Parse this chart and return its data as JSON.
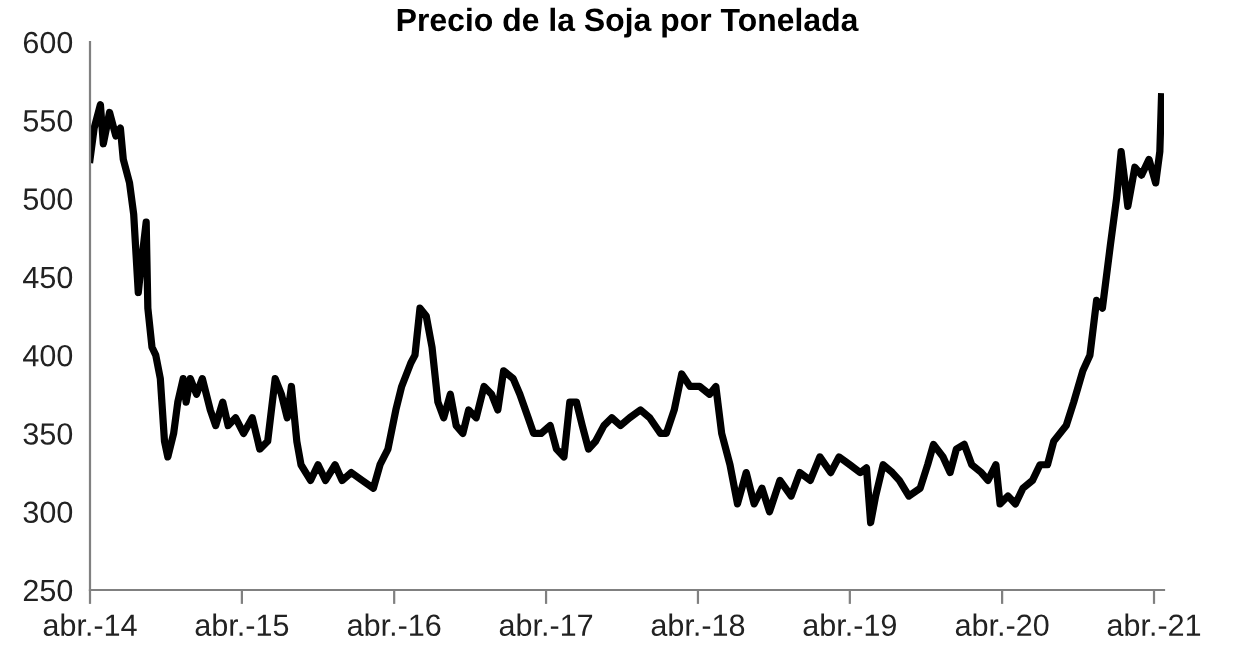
{
  "chart_data": {
    "type": "line",
    "title": "Precio de la Soja por Tonelada",
    "x": [
      "2014-04-01",
      "2014-04-11",
      "2014-04-26",
      "2014-05-03",
      "2014-05-18",
      "2014-06-02",
      "2014-06-13",
      "2014-06-20",
      "2014-07-05",
      "2014-07-15",
      "2014-07-26",
      "2014-08-03",
      "2014-08-14",
      "2014-08-18",
      "2014-08-28",
      "2014-09-06",
      "2014-09-17",
      "2014-09-27",
      "2014-10-05",
      "2014-10-19",
      "2014-10-29",
      "2014-11-11",
      "2014-11-18",
      "2014-11-28",
      "2014-12-13",
      "2014-12-27",
      "2015-01-15",
      "2015-01-28",
      "2015-02-14",
      "2015-02-27",
      "2015-03-17",
      "2015-04-05",
      "2015-04-26",
      "2015-05-14",
      "2015-06-02",
      "2015-06-20",
      "2015-07-05",
      "2015-07-19",
      "2015-07-29",
      "2015-08-11",
      "2015-08-21",
      "2015-09-13",
      "2015-10-01",
      "2015-10-19",
      "2015-11-11",
      "2015-11-28",
      "2015-12-20",
      "2016-01-15",
      "2016-02-11",
      "2016-02-27",
      "2016-03-17",
      "2016-04-05",
      "2016-04-19",
      "2016-05-11",
      "2016-05-21",
      "2016-06-02",
      "2016-06-17",
      "2016-07-01",
      "2016-07-15",
      "2016-07-29",
      "2016-08-14",
      "2016-08-28",
      "2016-09-13",
      "2016-09-27",
      "2016-10-15",
      "2016-11-03",
      "2016-11-21",
      "2016-12-06",
      "2016-12-20",
      "2017-01-12",
      "2017-01-28",
      "2017-02-17",
      "2017-03-02",
      "2017-03-20",
      "2017-04-11",
      "2017-04-26",
      "2017-05-14",
      "2017-05-28",
      "2017-06-13",
      "2017-06-27",
      "2017-07-12",
      "2017-07-29",
      "2017-08-18",
      "2017-09-06",
      "2017-09-27",
      "2017-10-19",
      "2017-11-14",
      "2017-12-06",
      "2018-01-01",
      "2018-01-15",
      "2018-02-03",
      "2018-02-21",
      "2018-03-13",
      "2018-04-05",
      "2018-04-29",
      "2018-05-14",
      "2018-05-28",
      "2018-06-17",
      "2018-07-05",
      "2018-07-26",
      "2018-08-14",
      "2018-09-02",
      "2018-09-20",
      "2018-10-15",
      "2018-11-11",
      "2018-12-02",
      "2018-12-27",
      "2019-01-19",
      "2019-02-14",
      "2019-03-06",
      "2019-04-01",
      "2019-04-26",
      "2019-05-11",
      "2019-05-21",
      "2019-06-02",
      "2019-06-20",
      "2019-07-12",
      "2019-07-29",
      "2019-08-21",
      "2019-09-17",
      "2019-10-05",
      "2019-10-19",
      "2019-11-11",
      "2019-11-28",
      "2019-12-13",
      "2020-01-01",
      "2020-01-19",
      "2020-02-11",
      "2020-02-27",
      "2020-03-17",
      "2020-03-27",
      "2020-04-15",
      "2020-05-03",
      "2020-05-21",
      "2020-06-13",
      "2020-07-01",
      "2020-07-19",
      "2020-08-03",
      "2020-09-02",
      "2020-09-20",
      "2020-10-12",
      "2020-10-29",
      "2020-11-14",
      "2020-11-28",
      "2020-12-17",
      "2021-01-01",
      "2021-01-12",
      "2021-01-19",
      "2021-01-28",
      "2021-02-14",
      "2021-03-02",
      "2021-03-20",
      "2021-04-05",
      "2021-04-15",
      "2021-04-19"
    ],
    "series": [
      {
        "color": "#000000",
        "values": [
          525,
          545,
          560,
          535,
          555,
          540,
          545,
          525,
          510,
          490,
          440,
          460,
          485,
          430,
          405,
          400,
          385,
          345,
          335,
          350,
          370,
          385,
          370,
          385,
          375,
          385,
          365,
          355,
          370,
          355,
          360,
          350,
          360,
          340,
          345,
          385,
          375,
          360,
          380,
          345,
          330,
          320,
          330,
          320,
          330,
          320,
          325,
          320,
          315,
          330,
          340,
          365,
          380,
          395,
          400,
          430,
          425,
          405,
          370,
          360,
          375,
          355,
          350,
          365,
          360,
          380,
          375,
          365,
          390,
          385,
          375,
          360,
          350,
          350,
          355,
          340,
          335,
          370,
          370,
          355,
          340,
          345,
          355,
          360,
          355,
          360,
          365,
          360,
          350,
          350,
          365,
          388,
          380,
          380,
          375,
          380,
          350,
          330,
          305,
          325,
          305,
          315,
          300,
          320,
          310,
          325,
          320,
          335,
          325,
          335,
          330,
          325,
          328,
          293,
          310,
          330,
          325,
          320,
          310,
          315,
          330,
          343,
          335,
          325,
          340,
          343,
          330,
          325,
          320,
          330,
          305,
          310,
          305,
          315,
          320,
          330,
          330,
          345,
          355,
          370,
          390,
          400,
          435,
          430,
          470,
          500,
          530,
          515,
          495,
          520,
          515,
          525,
          510,
          530,
          565
        ]
      }
    ],
    "xlim": [
      "2014-04-01",
      "2021-04-25"
    ],
    "xticks": [
      {
        "value": "2014-04-01",
        "label": "abr.-14"
      },
      {
        "value": "2015-04-01",
        "label": "abr.-15"
      },
      {
        "value": "2016-04-01",
        "label": "abr.-16"
      },
      {
        "value": "2017-04-01",
        "label": "abr.-17"
      },
      {
        "value": "2018-04-01",
        "label": "abr.-18"
      },
      {
        "value": "2019-04-01",
        "label": "abr.-19"
      },
      {
        "value": "2020-04-01",
        "label": "abr.-20"
      },
      {
        "value": "2021-04-01",
        "label": "abr.-21"
      }
    ],
    "ylim": [
      250,
      600
    ],
    "yticks": [
      250,
      300,
      350,
      400,
      450,
      500,
      550,
      600
    ],
    "marker": "none",
    "line_style": "solid"
  }
}
